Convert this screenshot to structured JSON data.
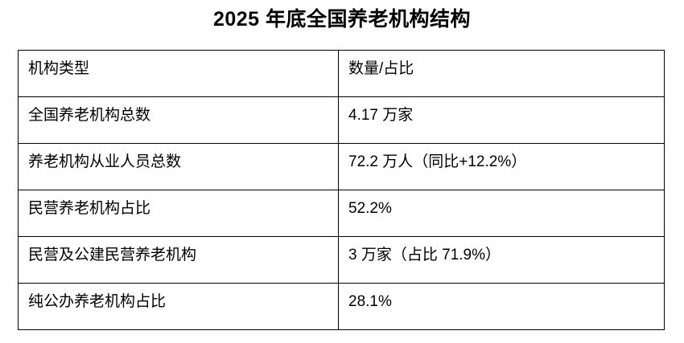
{
  "page": {
    "title": "2025 年底全国养老机构结构"
  },
  "table": {
    "headers": [
      "机构类型",
      "数量/占比"
    ],
    "rows": [
      [
        "全国养老机构总数",
        "4.17 万家"
      ],
      [
        "养老机构从业人员总数",
        "72.2 万人（同比+12.2%）"
      ],
      [
        "民营养老机构占比",
        "52.2%"
      ],
      [
        "民营及公建民营养老机构",
        "3 万家（占比 71.9%）"
      ],
      [
        "纯公办养老机构占比",
        "28.1%"
      ]
    ]
  },
  "chart_data": {
    "type": "table",
    "title": "2025 年底全国养老机构结构",
    "columns": [
      "机构类型",
      "数量/占比"
    ],
    "rows": [
      [
        "全国养老机构总数",
        "4.17 万家"
      ],
      [
        "养老机构从业人员总数",
        "72.2 万人（同比+12.2%）"
      ],
      [
        "民营养老机构占比",
        "52.2%"
      ],
      [
        "民营及公建民营养老机构",
        "3 万家（占比 71.9%）"
      ],
      [
        "纯公办养老机构占比",
        "28.1%"
      ]
    ],
    "values": {
      "total_institutions_wan": 4.17,
      "staff_total_wan": 72.2,
      "staff_yoy_growth_percent": 12.2,
      "private_institutions_percent": 52.2,
      "private_and_public_built_private_wan": 3,
      "private_and_public_built_private_percent": 71.9,
      "purely_public_percent": 28.1
    },
    "layout": {
      "grid": true,
      "border_color": "#000000",
      "title_position": "top-center"
    }
  },
  "colors": {
    "background": "#ffffff",
    "text": "#000000",
    "border": "#000000"
  }
}
